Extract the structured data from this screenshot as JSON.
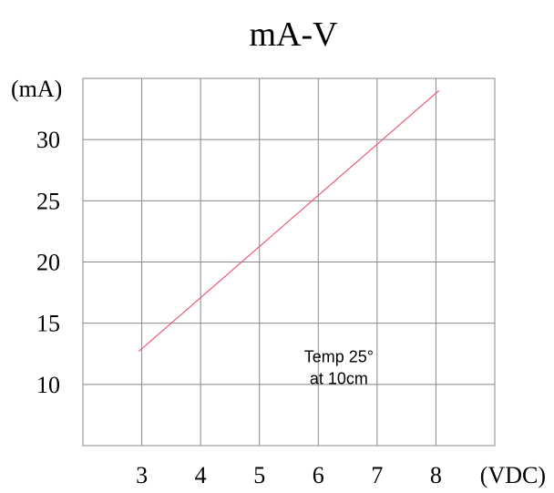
{
  "chart_data": {
    "type": "line",
    "title": "mA-V",
    "xlabel": "(VDC)",
    "ylabel": "(mA)",
    "x_ticks": [
      3,
      4,
      5,
      6,
      7,
      8
    ],
    "y_ticks": [
      10,
      15,
      20,
      25,
      30
    ],
    "xlim": [
      2,
      9
    ],
    "ylim": [
      5,
      35
    ],
    "grid": true,
    "series": [
      {
        "color": "#e8546e",
        "x": [
          2.95,
          8.05
        ],
        "y": [
          12.7,
          34.0
        ]
      }
    ],
    "annotations": [
      {
        "lines": [
          "Temp 25°",
          "at 10cm"
        ],
        "x": 6.35,
        "y": 11.8
      }
    ]
  }
}
